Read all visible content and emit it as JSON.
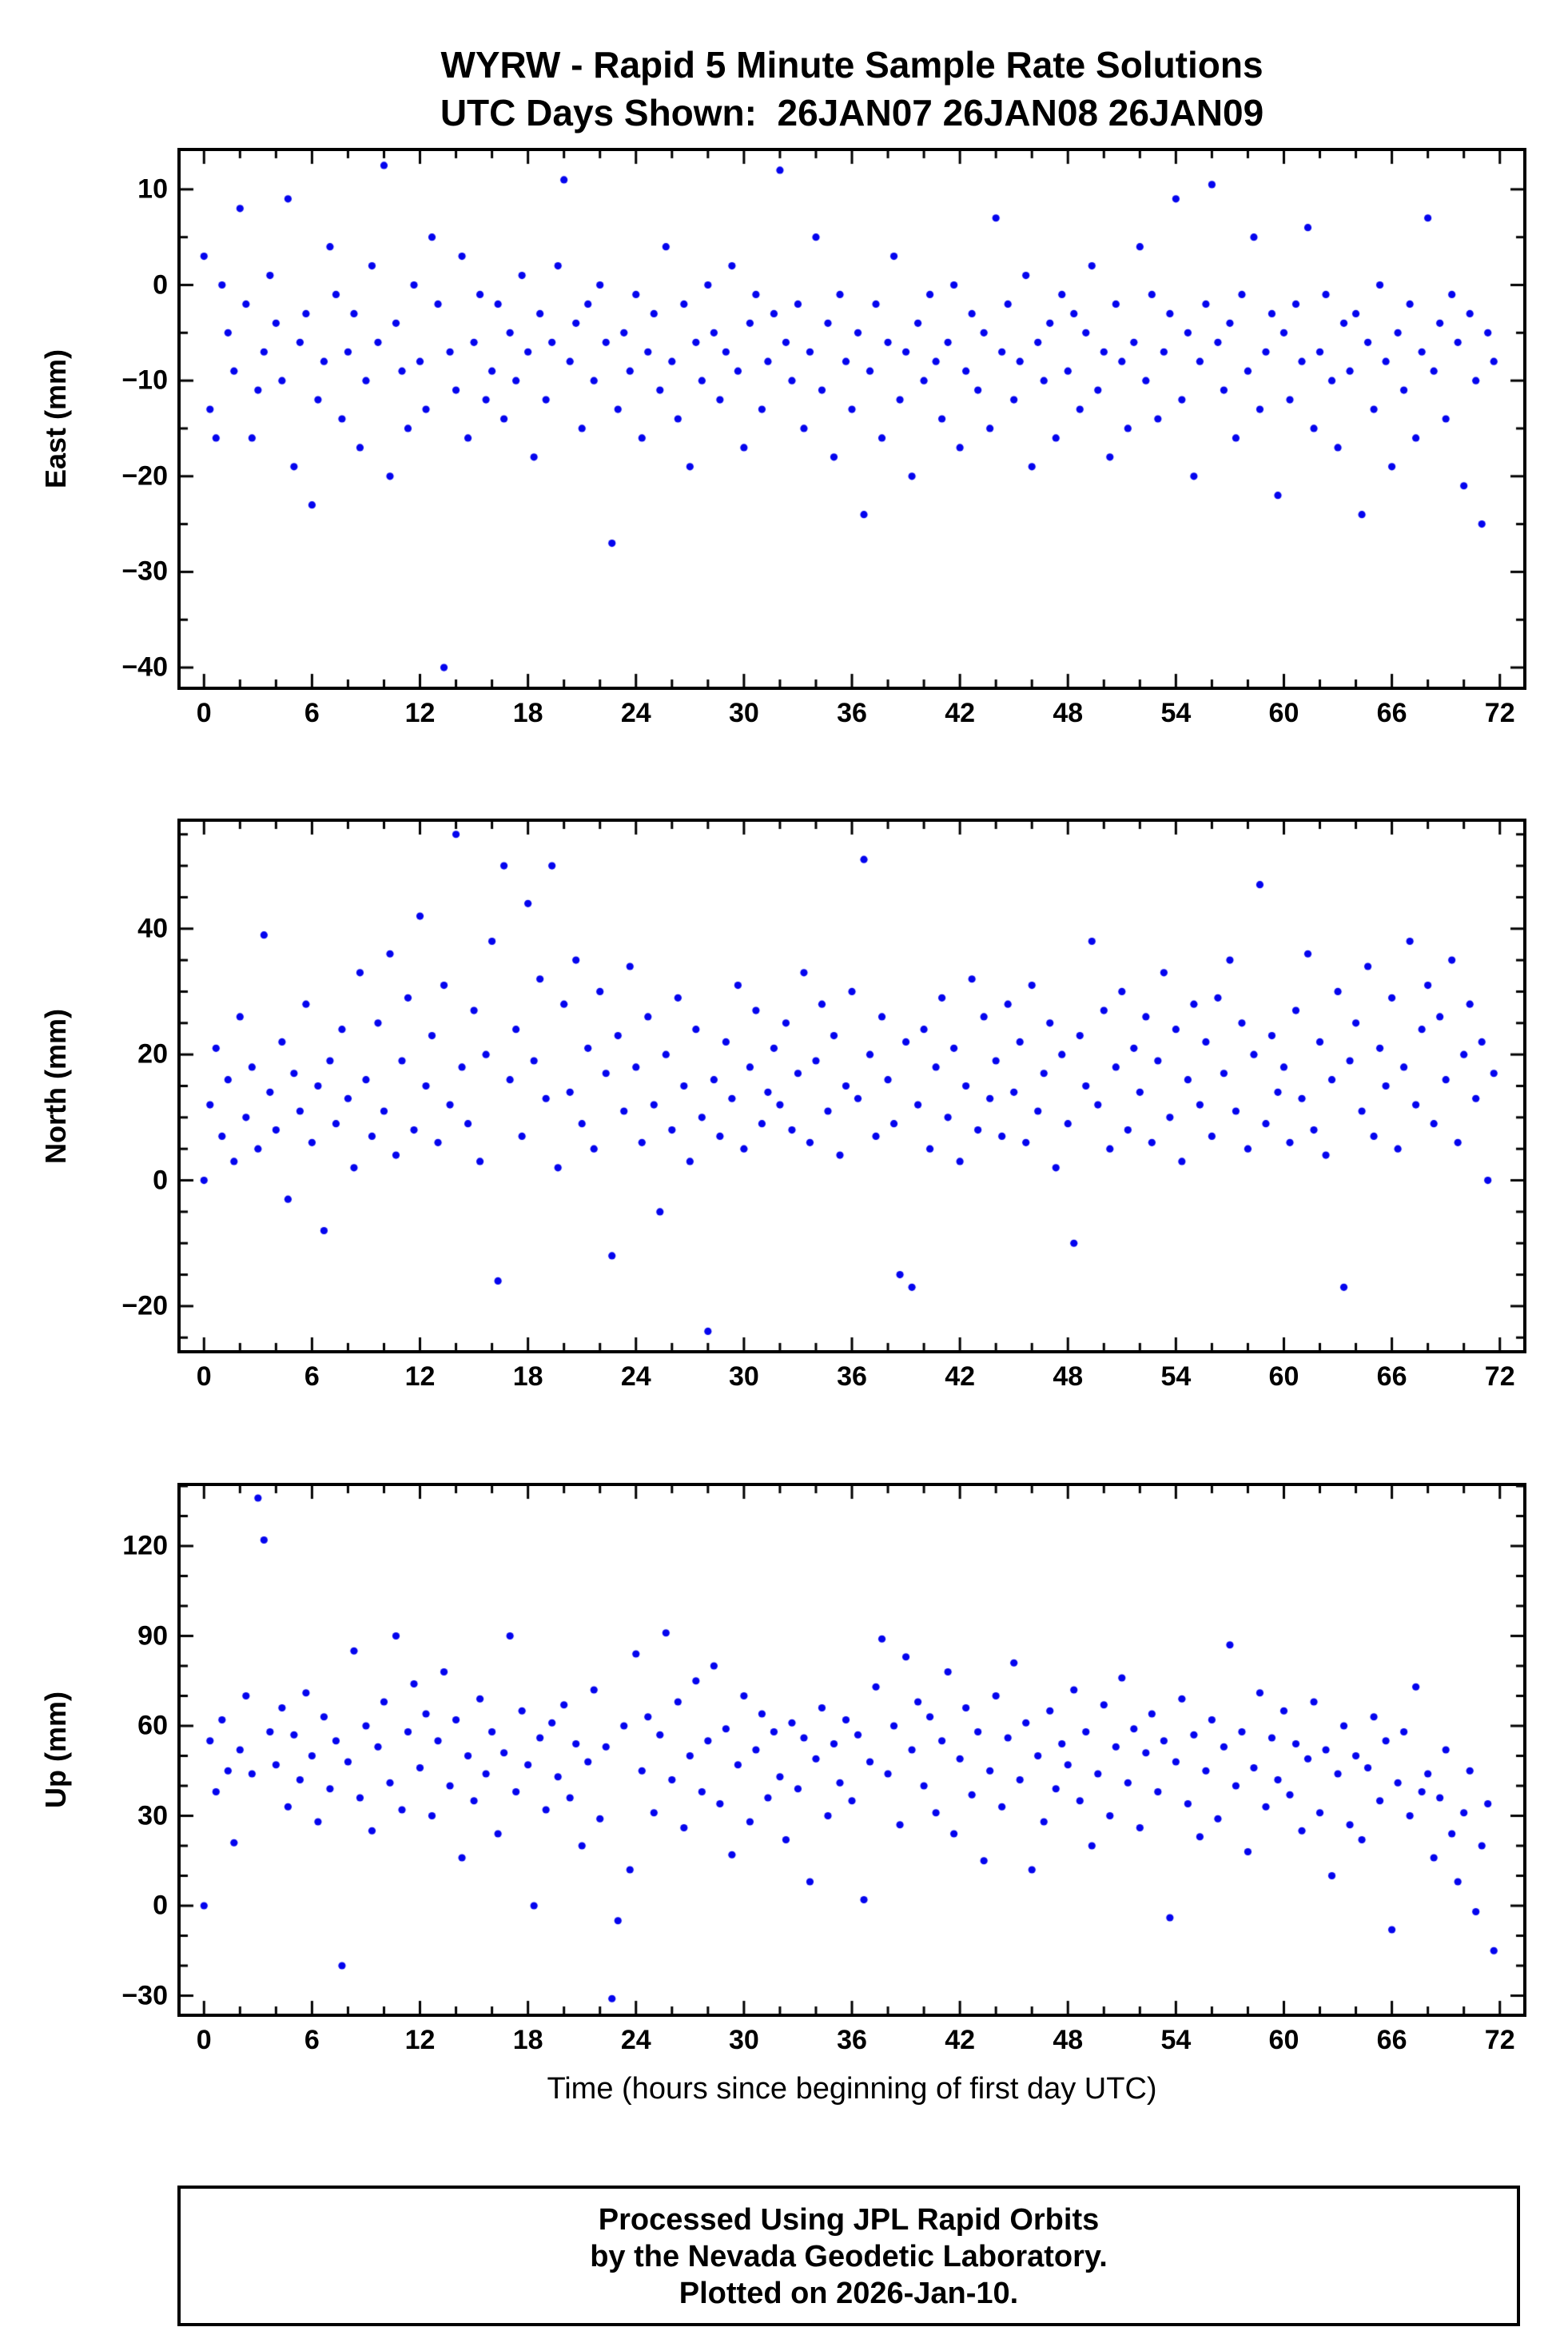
{
  "title": {
    "line1": "WYRW - Rapid 5 Minute Sample Rate Solutions",
    "line2": "UTC Days Shown:  26JAN07 26JAN08 26JAN09"
  },
  "xlabel": "Time (hours since beginning of first day UTC)",
  "footer": {
    "lines": [
      "Processed Using JPL Rapid Orbits",
      "by the Nevada Geodetic Laboratory.",
      "Plotted on 2026-Jan-10."
    ]
  },
  "marker": {
    "color": "#0505ee",
    "radius": 4.6
  },
  "chart_data": [
    {
      "type": "scatter",
      "series_name": "East",
      "ylabel": "East (mm)",
      "xlim": [
        -1.3,
        73.3
      ],
      "ylim": [
        -42,
        14
      ],
      "xticks": [
        0,
        6,
        12,
        18,
        24,
        30,
        36,
        42,
        48,
        54,
        60,
        66,
        72
      ],
      "yticks": [
        10,
        0,
        -10,
        -20,
        -30,
        -40
      ],
      "x_minor": 2,
      "y_minor": 5,
      "x_start": 0,
      "x_step": 0.3333333,
      "y": [
        3,
        -13,
        -16,
        0,
        -5,
        -9,
        8,
        -2,
        -16,
        -11,
        -7,
        1,
        -4,
        -10,
        9,
        -19,
        -6,
        -3,
        -23,
        -12,
        -8,
        4,
        -1,
        -14,
        -7,
        -3,
        -17,
        -10,
        2,
        -6,
        12.5,
        -20,
        -4,
        -9,
        -15,
        0,
        -8,
        -13,
        5,
        -2,
        -40,
        -7,
        -11,
        3,
        -16,
        -6,
        -1,
        -12,
        -9,
        -2,
        -14,
        -5,
        -10,
        1,
        -7,
        -18,
        -3,
        -12,
        -6,
        2,
        11,
        -8,
        -4,
        -15,
        -2,
        -10,
        0,
        -6,
        -27,
        -13,
        -5,
        -9,
        -1,
        -16,
        -7,
        -3,
        -11,
        4,
        -8,
        -14,
        -2,
        -19,
        -6,
        -10,
        0,
        -5,
        -12,
        -7,
        2,
        -9,
        -17,
        -4,
        -1,
        -13,
        -8,
        -3,
        12,
        -6,
        -10,
        -2,
        -15,
        -7,
        5,
        -11,
        -4,
        -18,
        -1,
        -8,
        -13,
        -5,
        -24,
        -9,
        -2,
        -16,
        -6,
        3,
        -12,
        -7,
        -20,
        -4,
        -10,
        -1,
        -8,
        -14,
        -6,
        0,
        -17,
        -9,
        -3,
        -11,
        -5,
        -15,
        7,
        -7,
        -2,
        -12,
        -8,
        1,
        -19,
        -6,
        -10,
        -4,
        -16,
        -1,
        -9,
        -3,
        -13,
        -5,
        2,
        -11,
        -7,
        -18,
        -2,
        -8,
        -15,
        -6,
        4,
        -10,
        -1,
        -14,
        -7,
        -3,
        9,
        -12,
        -5,
        -20,
        -8,
        -2,
        10.5,
        -6,
        -11,
        -4,
        -16,
        -1,
        -9,
        5,
        -13,
        -7,
        -3,
        -22,
        -5,
        -12,
        -2,
        -8,
        6,
        -15,
        -7,
        -1,
        -10,
        -17,
        -4,
        -9,
        -3,
        -24,
        -6,
        -13,
        0,
        -8,
        -19,
        -5,
        -11,
        -2,
        -16,
        -7,
        7,
        -9,
        -4,
        -14,
        -1,
        -6,
        -21,
        -3,
        -10,
        -25,
        -5,
        -8
      ]
    },
    {
      "type": "scatter",
      "series_name": "North",
      "ylabel": "North (mm)",
      "xlim": [
        -1.3,
        73.3
      ],
      "ylim": [
        -27,
        57
      ],
      "xticks": [
        0,
        6,
        12,
        18,
        24,
        30,
        36,
        42,
        48,
        54,
        60,
        66,
        72
      ],
      "yticks": [
        40,
        20,
        0,
        -20
      ],
      "x_minor": 2,
      "y_minor": 5,
      "x_start": 0,
      "x_step": 0.3333333,
      "y": [
        0,
        12,
        21,
        7,
        16,
        3,
        26,
        10,
        18,
        5,
        39,
        14,
        8,
        22,
        -3,
        17,
        11,
        28,
        6,
        15,
        -8,
        19,
        9,
        24,
        13,
        2,
        33,
        16,
        7,
        25,
        11,
        36,
        4,
        19,
        29,
        8,
        42,
        15,
        23,
        6,
        31,
        12,
        55,
        18,
        9,
        27,
        3,
        20,
        38,
        -16,
        50,
        16,
        24,
        7,
        44,
        19,
        32,
        13,
        50,
        2,
        28,
        14,
        35,
        9,
        21,
        5,
        30,
        17,
        -12,
        23,
        11,
        34,
        18,
        6,
        26,
        12,
        -5,
        20,
        8,
        29,
        15,
        3,
        24,
        10,
        -24,
        16,
        7,
        22,
        13,
        31,
        5,
        18,
        27,
        9,
        14,
        21,
        12,
        25,
        8,
        17,
        33,
        6,
        19,
        28,
        11,
        23,
        4,
        15,
        30,
        13,
        51,
        20,
        7,
        26,
        16,
        9,
        -15,
        22,
        -17,
        12,
        24,
        5,
        18,
        29,
        10,
        21,
        3,
        15,
        32,
        8,
        26,
        13,
        19,
        7,
        28,
        14,
        22,
        6,
        31,
        11,
        17,
        25,
        2,
        20,
        9,
        -10,
        23,
        15,
        38,
        12,
        27,
        5,
        18,
        30,
        8,
        21,
        14,
        26,
        6,
        19,
        33,
        10,
        24,
        3,
        16,
        28,
        12,
        22,
        7,
        29,
        17,
        35,
        11,
        25,
        5,
        20,
        47,
        9,
        23,
        14,
        18,
        6,
        27,
        13,
        36,
        8,
        22,
        4,
        16,
        30,
        -17,
        19,
        25,
        11,
        34,
        7,
        21,
        15,
        29,
        5,
        18,
        38,
        12,
        24,
        31,
        9,
        26,
        16,
        35,
        6,
        20,
        28,
        13,
        22,
        0,
        17
      ]
    },
    {
      "type": "scatter",
      "series_name": "Up",
      "ylabel": "Up (mm)",
      "xlim": [
        -1.3,
        73.3
      ],
      "ylim": [
        -36,
        140
      ],
      "xticks": [
        0,
        6,
        12,
        18,
        24,
        30,
        36,
        42,
        48,
        54,
        60,
        66,
        72
      ],
      "yticks": [
        120,
        90,
        60,
        30,
        0,
        -30
      ],
      "x_minor": 2,
      "y_minor": 10,
      "x_start": 0,
      "x_step": 0.3333333,
      "y": [
        0,
        55,
        38,
        62,
        45,
        21,
        52,
        70,
        44,
        136,
        122,
        58,
        47,
        66,
        33,
        57,
        42,
        71,
        50,
        28,
        63,
        39,
        55,
        -20,
        48,
        85,
        36,
        60,
        25,
        53,
        68,
        41,
        90,
        32,
        58,
        74,
        46,
        64,
        30,
        55,
        78,
        40,
        62,
        16,
        50,
        35,
        69,
        44,
        58,
        24,
        51,
        90,
        38,
        65,
        47,
        0,
        56,
        32,
        61,
        43,
        67,
        36,
        54,
        20,
        48,
        72,
        29,
        53,
        -31,
        -5,
        60,
        12,
        84,
        45,
        63,
        31,
        57,
        91,
        42,
        68,
        26,
        50,
        75,
        38,
        55,
        80,
        34,
        59,
        17,
        47,
        70,
        28,
        52,
        64,
        36,
        58,
        43,
        22,
        61,
        39,
        56,
        8,
        49,
        66,
        30,
        54,
        41,
        62,
        35,
        57,
        2,
        48,
        73,
        89,
        44,
        60,
        27,
        83,
        52,
        68,
        40,
        63,
        31,
        55,
        78,
        24,
        49,
        66,
        37,
        58,
        15,
        45,
        70,
        33,
        56,
        81,
        42,
        61,
        12,
        50,
        28,
        65,
        39,
        54,
        47,
        72,
        35,
        58,
        20,
        44,
        67,
        30,
        53,
        76,
        41,
        59,
        26,
        51,
        64,
        38,
        55,
        -4,
        48,
        69,
        34,
        57,
        23,
        45,
        62,
        29,
        53,
        87,
        40,
        58,
        18,
        46,
        71,
        33,
        56,
        42,
        65,
        37,
        54,
        25,
        49,
        68,
        31,
        52,
        10,
        44,
        60,
        27,
        50,
        22,
        46,
        63,
        35,
        55,
        -8,
        41,
        58,
        30,
        73,
        38,
        44,
        16,
        36,
        52,
        24,
        8,
        31,
        45,
        -2,
        20,
        34,
        -15
      ]
    }
  ]
}
